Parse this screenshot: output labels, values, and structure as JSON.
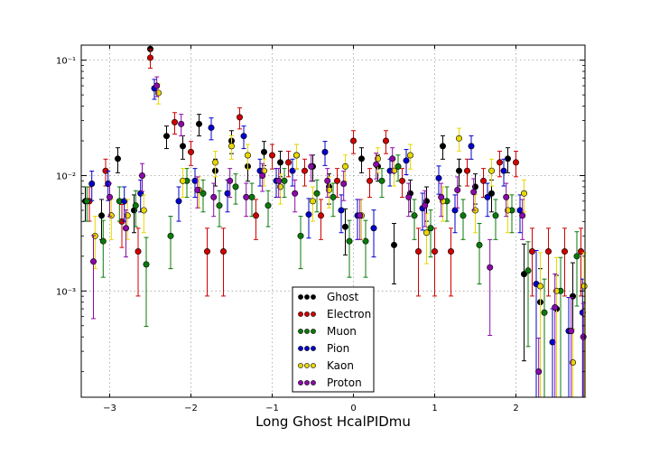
{
  "chart_data": {
    "type": "scatter",
    "title": "",
    "xlabel": "Long Ghost HcalPIDmu",
    "ylabel": "",
    "xlim": [
      -3.35,
      2.85
    ],
    "ylim": [
      0.00012,
      0.135
    ],
    "yscale": "log",
    "grid": true,
    "legend_position": "lower-center",
    "x_ticks": [
      -3,
      -2,
      -1,
      0,
      1,
      2
    ],
    "x_tick_labels": [
      "−3",
      "−2",
      "−1",
      "0",
      "1",
      "2"
    ],
    "y_ticks": [
      0.001,
      0.01,
      0.1
    ],
    "y_tick_labels": [
      "10⁻³",
      "10⁻²",
      "10⁻¹"
    ],
    "series": [
      {
        "name": "Ghost",
        "color": "#000000",
        "err_color": "#000000",
        "x": [
          -3.3,
          -3.1,
          -2.9,
          -2.7,
          -2.5,
          -2.3,
          -2.1,
          -1.9,
          -1.7,
          -1.5,
          -1.3,
          -1.1,
          -0.9,
          -0.7,
          -0.5,
          -0.3,
          -0.1,
          0.1,
          0.3,
          0.5,
          0.7,
          0.9,
          1.1,
          1.3,
          1.5,
          1.7,
          1.9,
          2.1,
          2.3,
          2.5,
          2.7
        ],
        "y": [
          0.006,
          0.0045,
          0.014,
          0.005,
          0.125,
          0.022,
          0.018,
          0.028,
          0.011,
          0.02,
          0.012,
          0.016,
          0.013,
          0.015,
          0.012,
          0.008,
          0.0036,
          0.014,
          0.012,
          0.0025,
          0.007,
          0.006,
          0.018,
          0.011,
          0.008,
          0.007,
          0.014,
          0.0014,
          0.0008,
          0.0007,
          0.0009
        ]
      },
      {
        "name": "Electron",
        "color": "#d00000",
        "err_color": "#d00000",
        "x": [
          -3.25,
          -3.05,
          -2.85,
          -2.65,
          -2.5,
          -2.2,
          -2.0,
          -1.8,
          -1.6,
          -1.4,
          -1.2,
          -1.0,
          -0.8,
          -0.6,
          -0.4,
          -0.2,
          0.0,
          0.2,
          0.4,
          0.6,
          0.8,
          1.0,
          1.2,
          1.4,
          1.6,
          1.8,
          2.0,
          2.2,
          2.4,
          2.6,
          2.8
        ],
        "y": [
          0.006,
          0.011,
          0.004,
          0.0022,
          0.105,
          0.029,
          0.016,
          0.0022,
          0.0022,
          0.032,
          0.0045,
          0.015,
          0.013,
          0.011,
          0.0045,
          0.009,
          0.02,
          0.009,
          0.02,
          0.009,
          0.0022,
          0.0022,
          0.0022,
          0.011,
          0.009,
          0.013,
          0.013,
          0.0022,
          0.0022,
          0.0022,
          0.0022
        ]
      },
      {
        "name": "Muon",
        "color": "#0a7a0a",
        "err_color": "#0a7a0a",
        "x": [
          -3.28,
          -3.08,
          -2.88,
          -2.68,
          -2.55,
          -2.25,
          -2.05,
          -1.85,
          -1.65,
          -1.45,
          -1.25,
          -1.05,
          -0.85,
          -0.65,
          -0.45,
          -0.25,
          -0.05,
          0.15,
          0.35,
          0.55,
          0.75,
          0.95,
          1.15,
          1.35,
          1.55,
          1.75,
          1.95,
          2.15,
          2.35,
          2.55,
          2.75
        ],
        "y": [
          0.006,
          0.0027,
          0.006,
          0.0055,
          0.0017,
          0.003,
          0.009,
          0.007,
          0.0055,
          0.008,
          0.0065,
          0.0055,
          0.009,
          0.003,
          0.007,
          0.0065,
          0.0027,
          0.0027,
          0.009,
          0.012,
          0.0045,
          0.0035,
          0.006,
          0.0045,
          0.0025,
          0.0045,
          0.005,
          0.0015,
          0.00065,
          0.001,
          0.002
        ]
      },
      {
        "name": "Pion",
        "color": "#0000cc",
        "err_color": "#0000cc",
        "x": [
          -3.22,
          -3.02,
          -2.82,
          -2.62,
          -2.45,
          -2.15,
          -1.95,
          -1.75,
          -1.55,
          -1.35,
          -1.15,
          -0.95,
          -0.75,
          -0.55,
          -0.35,
          -0.15,
          0.05,
          0.25,
          0.45,
          0.65,
          0.85,
          1.05,
          1.25,
          1.45,
          1.65,
          1.85,
          2.05,
          2.25,
          2.45,
          2.65,
          2.82
        ],
        "y": [
          0.0085,
          0.0085,
          0.006,
          0.007,
          0.057,
          0.006,
          0.009,
          0.026,
          0.007,
          0.022,
          0.011,
          0.009,
          0.011,
          0.0046,
          0.016,
          0.005,
          0.0045,
          0.0035,
          0.011,
          0.0135,
          0.0052,
          0.0095,
          0.005,
          0.018,
          0.0065,
          0.011,
          0.005,
          0.00115,
          0.00036,
          0.00045,
          0.00065
        ]
      },
      {
        "name": "Kaon",
        "color": "#e8d800",
        "err_color": "#e8d800",
        "x": [
          -3.18,
          -2.98,
          -2.78,
          -2.58,
          -2.4,
          -2.1,
          -1.9,
          -1.7,
          -1.5,
          -1.3,
          -1.1,
          -0.9,
          -0.7,
          -0.5,
          -0.3,
          -0.1,
          0.1,
          0.3,
          0.5,
          0.7,
          0.9,
          1.1,
          1.3,
          1.5,
          1.7,
          1.9,
          2.1,
          2.3,
          2.5,
          2.7,
          2.84
        ],
        "y": [
          0.003,
          0.0045,
          0.0045,
          0.005,
          0.052,
          0.009,
          0.0075,
          0.013,
          0.018,
          0.015,
          0.011,
          0.008,
          0.015,
          0.006,
          0.0075,
          0.012,
          0.0045,
          0.014,
          0.011,
          0.015,
          0.0032,
          0.006,
          0.021,
          0.005,
          0.011,
          0.005,
          0.007,
          0.0011,
          0.001,
          0.00024,
          0.0011
        ]
      },
      {
        "name": "Proton",
        "color": "#8a0aa8",
        "err_color": "#8a0aa8",
        "x": [
          -3.2,
          -3.0,
          -2.8,
          -2.6,
          -2.42,
          -2.12,
          -1.92,
          -1.72,
          -1.52,
          -1.32,
          -1.12,
          -0.92,
          -0.72,
          -0.52,
          -0.32,
          -0.12,
          0.08,
          0.28,
          0.48,
          0.68,
          0.88,
          1.08,
          1.28,
          1.48,
          1.68,
          1.88,
          2.08,
          2.28,
          2.48,
          2.68,
          2.83
        ],
        "y": [
          0.0018,
          0.0065,
          0.0035,
          0.01,
          0.06,
          0.028,
          0.0075,
          0.0065,
          0.009,
          0.0065,
          0.01,
          0.009,
          0.007,
          0.012,
          0.009,
          0.0085,
          0.0045,
          0.0125,
          0.014,
          0.0065,
          0.0055,
          0.0065,
          0.0075,
          0.0072,
          0.0016,
          0.0065,
          0.0045,
          0.0002,
          0.00072,
          0.00045,
          0.0004
        ]
      }
    ]
  }
}
